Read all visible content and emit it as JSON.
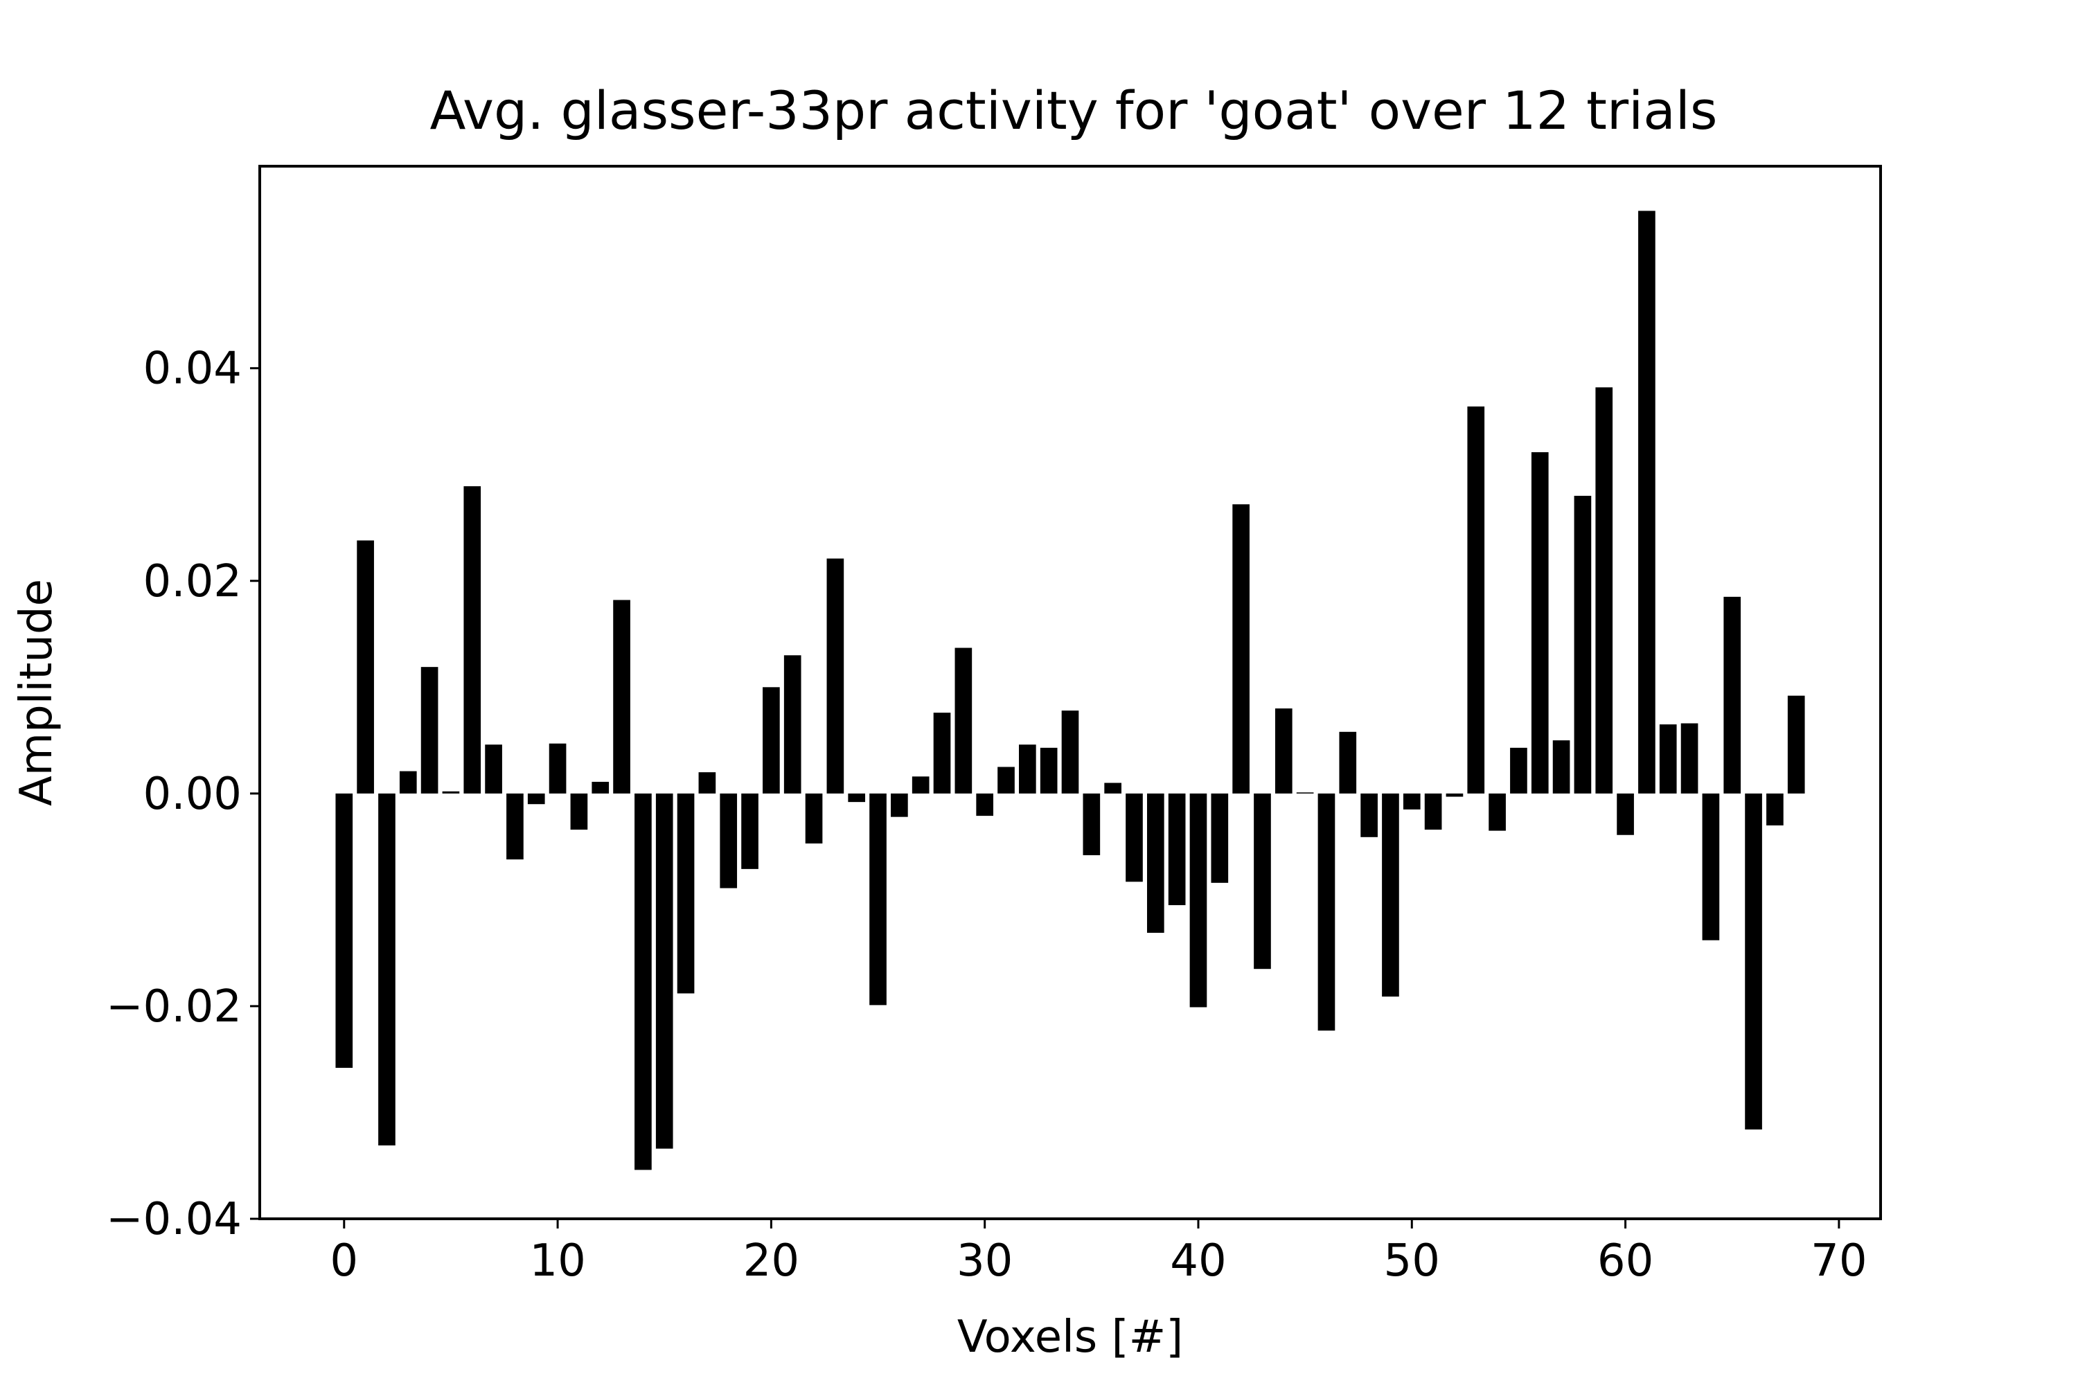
{
  "chart_data": {
    "type": "bar",
    "title": "Avg. glasser-33pr activity for 'goat' over 12 trials",
    "xlabel": "Voxels [#]",
    "ylabel": "Amplitude",
    "xlim": [
      -3.95,
      71.95
    ],
    "ylim": [
      -0.04,
      0.059
    ],
    "xticks": [
      0,
      10,
      20,
      30,
      40,
      50,
      60,
      70
    ],
    "xtick_labels": [
      "0",
      "10",
      "20",
      "30",
      "40",
      "50",
      "60",
      "70"
    ],
    "yticks": [
      -0.04,
      -0.02,
      0.0,
      0.02,
      0.04
    ],
    "ytick_labels": [
      "−0.04",
      "−0.02",
      "0.00",
      "0.02",
      "0.04"
    ],
    "grid": false,
    "bar_color": "#000000",
    "x": [
      0,
      1,
      2,
      3,
      4,
      5,
      6,
      7,
      8,
      9,
      10,
      11,
      12,
      13,
      14,
      15,
      16,
      17,
      18,
      19,
      20,
      21,
      22,
      23,
      24,
      25,
      26,
      27,
      28,
      29,
      30,
      31,
      32,
      33,
      34,
      35,
      36,
      37,
      38,
      39,
      40,
      41,
      42,
      43,
      44,
      45,
      46,
      47,
      48,
      49,
      50,
      51,
      52,
      53,
      54,
      55,
      56,
      57,
      58,
      59,
      60,
      61,
      62,
      63,
      64,
      65,
      66,
      67,
      68
    ],
    "values": [
      -0.0258,
      0.0238,
      -0.0331,
      0.0021,
      0.0119,
      0.0002,
      0.0289,
      0.0046,
      -0.0062,
      -0.001,
      0.0047,
      -0.0034,
      0.0011,
      0.0182,
      -0.0354,
      -0.0334,
      -0.0188,
      0.002,
      -0.0089,
      -0.0071,
      0.01,
      0.013,
      -0.0047,
      0.0221,
      -0.0008,
      -0.0199,
      -0.0022,
      0.0016,
      0.0076,
      0.0137,
      -0.0021,
      0.0025,
      0.0046,
      0.0043,
      0.0078,
      -0.0058,
      0.001,
      -0.0083,
      -0.0131,
      -0.0105,
      -0.0201,
      -0.0084,
      0.0272,
      -0.0165,
      0.008,
      0.0001,
      -0.0223,
      0.0058,
      -0.0041,
      -0.0191,
      -0.0015,
      -0.0034,
      -0.0003,
      0.0364,
      -0.0035,
      0.0043,
      0.0321,
      0.005,
      0.028,
      0.0382,
      -0.0039,
      0.0548,
      0.0065,
      0.0066,
      -0.0138,
      0.0185,
      -0.0316,
      -0.003,
      0.0092
    ]
  }
}
